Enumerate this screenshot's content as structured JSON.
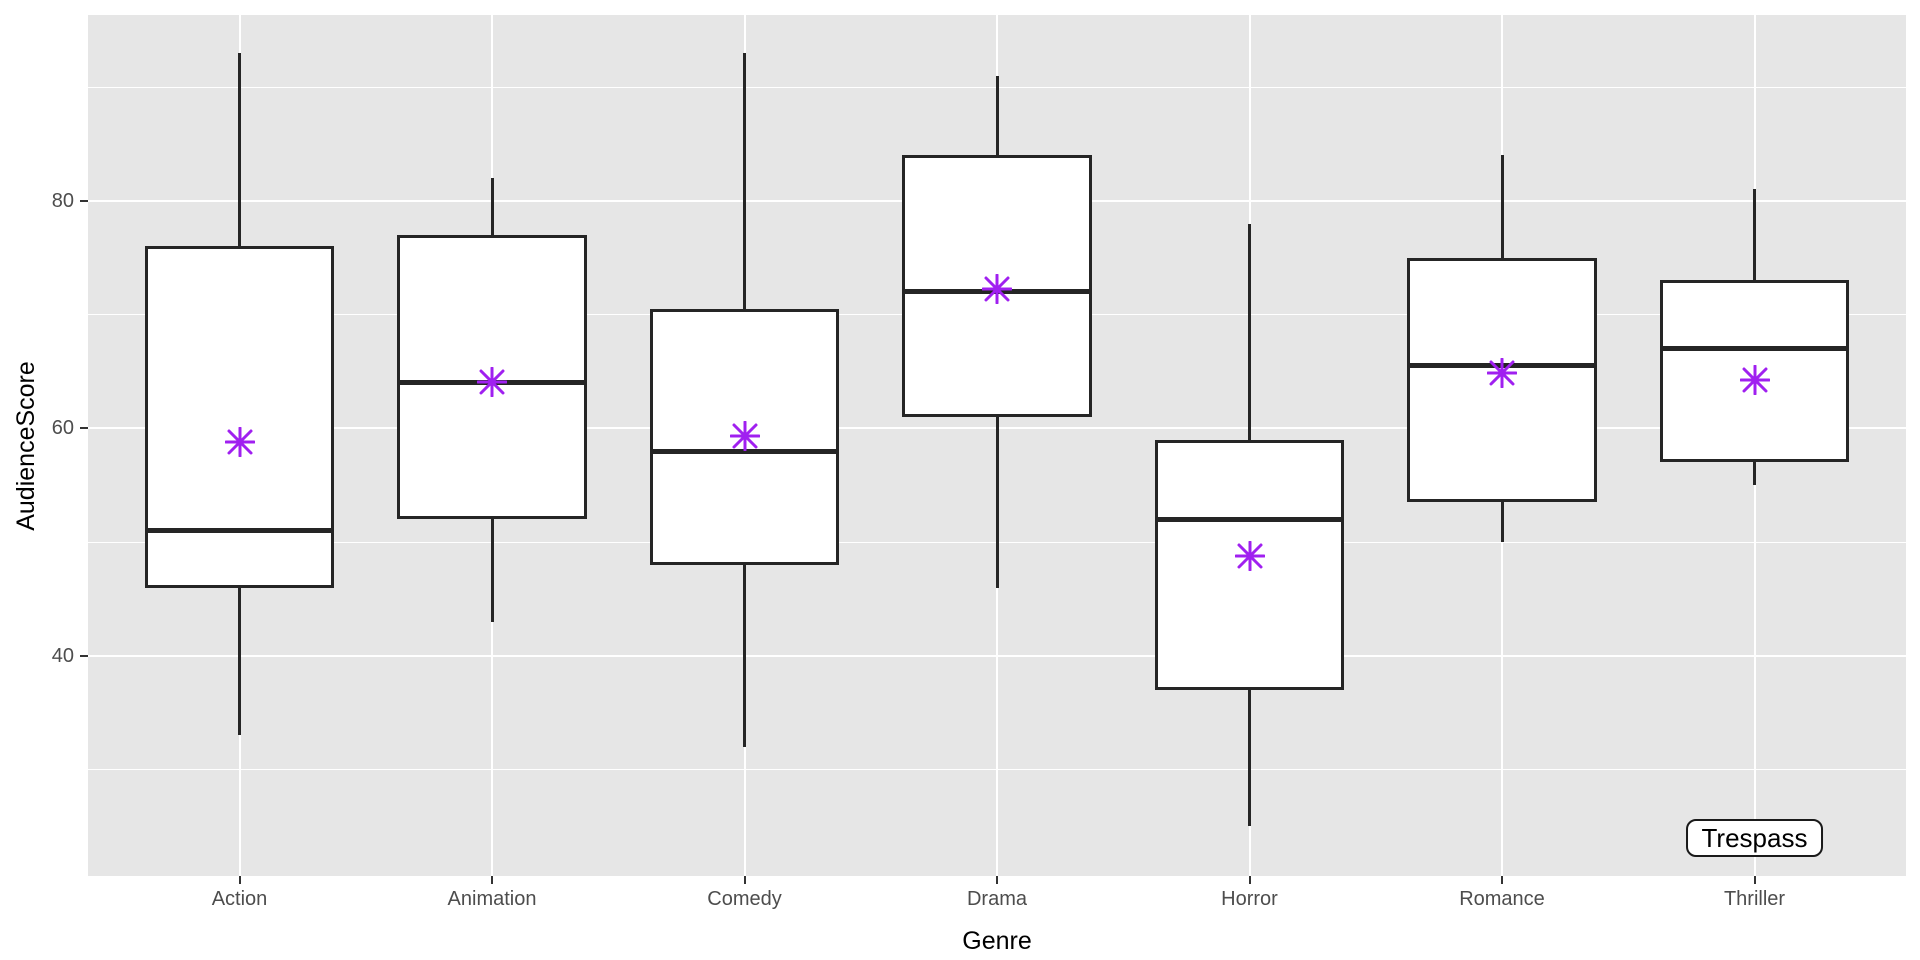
{
  "chart_data": {
    "type": "boxplot",
    "title": "",
    "xlabel": "Genre",
    "ylabel": "AudienceScore",
    "categories": [
      "Action",
      "Animation",
      "Comedy",
      "Drama",
      "Horror",
      "Romance",
      "Thriller"
    ],
    "series": [
      {
        "name": "Action",
        "min": 33,
        "q1": 46,
        "median": 51,
        "q3": 76,
        "max": 93,
        "mean": 58.8
      },
      {
        "name": "Animation",
        "min": 43,
        "q1": 52,
        "median": 64,
        "q3": 77,
        "max": 82,
        "mean": 64.1
      },
      {
        "name": "Comedy",
        "min": 32,
        "q1": 48,
        "median": 58,
        "q3": 70.5,
        "max": 93,
        "mean": 59.3
      },
      {
        "name": "Drama",
        "min": 46,
        "q1": 61,
        "median": 72,
        "q3": 84,
        "max": 91,
        "mean": 72.2
      },
      {
        "name": "Horror",
        "min": 25,
        "q1": 37,
        "median": 52,
        "q3": 59,
        "max": 78,
        "mean": 48.8
      },
      {
        "name": "Romance",
        "min": 50,
        "q1": 53.5,
        "median": 65.5,
        "q3": 75,
        "max": 84,
        "mean": 64.9
      },
      {
        "name": "Thriller",
        "min": 55,
        "q1": 57,
        "median": 67,
        "q3": 73,
        "max": 81,
        "mean": 64.2
      }
    ],
    "y_axis": {
      "major_ticks": [
        40,
        60,
        80
      ],
      "minor_gridlines": [
        30,
        50,
        70,
        90
      ],
      "domain": [
        20.64,
        96.33
      ],
      "grid": true
    },
    "legend": "none",
    "annotation": {
      "label": "Trespass",
      "category": "Thriller",
      "value": 24
    },
    "mean_marker_symbol": "asterisk-8-ray",
    "colors": {
      "panel_bg": "#E6E6E6",
      "grid": "#FFFFFF",
      "box_border": "#252525",
      "box_fill": "#FFFFFF",
      "median": "#252525",
      "mean_marker": "#A020F0",
      "tick_label": "#4D4D4D",
      "axis_title": "#000000",
      "tick_mark": "#333333",
      "annotation_border": "#1A1A1A",
      "annotation_bg": "#FFFFFF"
    }
  }
}
